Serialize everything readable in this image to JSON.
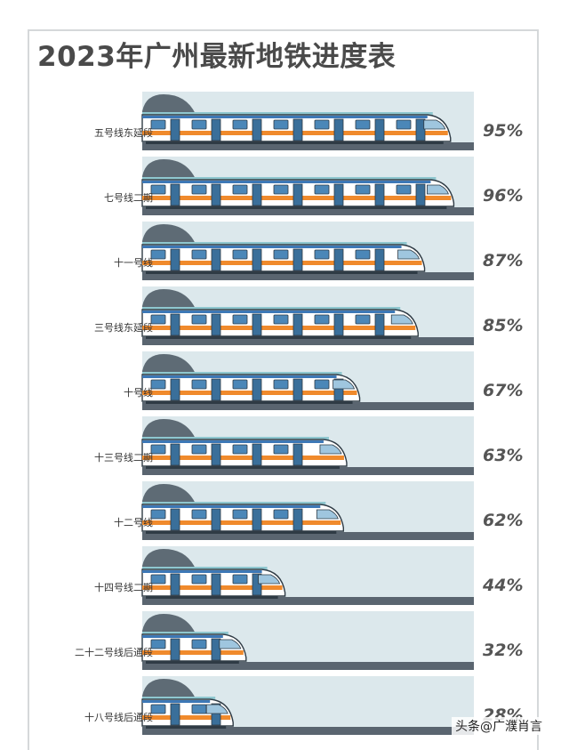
{
  "title": "2023年广州最新地铁进度表",
  "watermark": "头条@广濮肖言",
  "chart_data": {
    "type": "bar",
    "orientation": "horizontal",
    "title": "2023年广州最新地铁进度表",
    "categories": [
      "五号线东延段",
      "七号线二期",
      "十一号线",
      "三号线东延段",
      "十号线",
      "十三号线二期",
      "十二号线",
      "十四号线二期",
      "二十二号线后通段",
      "十八号线后通段"
    ],
    "values": [
      95,
      96,
      87,
      85,
      67,
      63,
      62,
      44,
      32,
      28
    ],
    "value_labels": [
      "95%",
      "96%",
      "87%",
      "85%",
      "67%",
      "63%",
      "62%",
      "44%",
      "32%",
      "28%"
    ],
    "xlim": [
      0,
      100
    ],
    "colors": {
      "panel": "#dce8ec",
      "track": "#5a6570",
      "tunnel": "#5e6b75",
      "train_body": "#ffffff",
      "stripe_orange": "#f08a2c",
      "stripe_blue": "#3d78b6",
      "door": "#3a6f9a",
      "window": "#4b87b8"
    }
  }
}
